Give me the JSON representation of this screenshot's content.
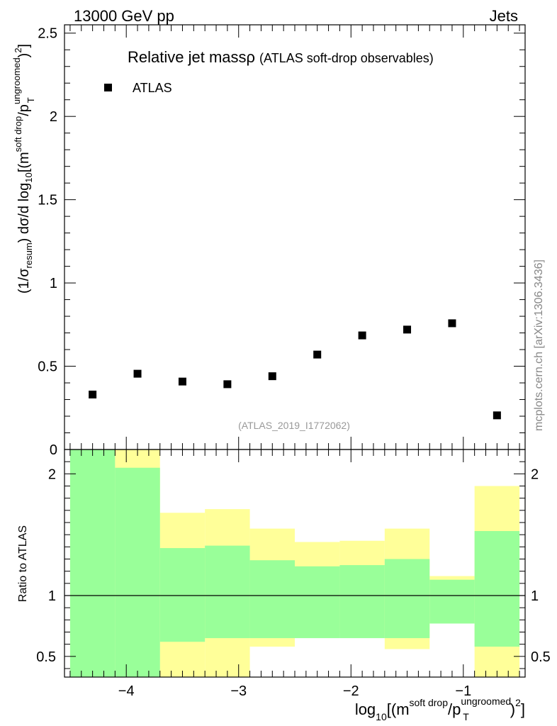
{
  "header": {
    "left": "13000 GeV pp",
    "right": "Jets"
  },
  "side_note": "mcplots.cern.ch [arXiv:1306.3436]",
  "analysis_id": "(ATLAS_2019_I1772062)",
  "chart_data": [
    {
      "type": "scatter",
      "title_main": "Relative jet mass",
      "title_symbol": "ρ",
      "title_sub": "(ATLAS soft-drop observables)",
      "ylabel": "(1/σ_resum) dσ/d log_10[(m^soft drop/p_T^ungroomed)^2]",
      "ylim": [
        0,
        2.55
      ],
      "yticks": [
        0,
        0.5,
        1,
        1.5,
        2,
        2.5
      ],
      "ytick_labels": [
        "0",
        "0.5",
        "1",
        "1.5",
        "2",
        "2.5"
      ],
      "xlim": [
        -4.55,
        -0.45
      ],
      "grid": false,
      "legend_position": "top-left",
      "series": [
        {
          "name": "ATLAS",
          "color": "#000000",
          "marker": "square",
          "x": [
            -4.3,
            -3.9,
            -3.5,
            -3.1,
            -2.7,
            -2.3,
            -1.9,
            -1.5,
            -1.1,
            -0.7
          ],
          "y": [
            0.33,
            0.455,
            0.408,
            0.392,
            0.44,
            0.57,
            0.685,
            0.72,
            0.758,
            0.205
          ]
        }
      ]
    },
    {
      "type": "area",
      "ylabel": "Ratio to ATLAS",
      "xlabel": "log_10[(m^soft drop/p_T^ungroomed)^2]",
      "xlim": [
        -4.55,
        -0.45
      ],
      "xticks": [
        -4,
        -3,
        -2,
        -1
      ],
      "xtick_labels": [
        "−4",
        "−3",
        "−2",
        "−1"
      ],
      "ylim": [
        0.33,
        2.2
      ],
      "yticks": [
        0.5,
        1,
        2
      ],
      "ytick_labels": [
        "0.5",
        "1",
        "2"
      ],
      "reference_line": 1,
      "bin_edges": [
        -4.5,
        -4.1,
        -3.7,
        -3.3,
        -2.9,
        -2.5,
        -2.1,
        -1.7,
        -1.3,
        -0.9,
        -0.5
      ],
      "bands": [
        {
          "kind": "stat",
          "color": "#99ff99",
          "low": [
            0.33,
            0.33,
            0.62,
            0.65,
            0.65,
            0.65,
            0.65,
            0.65,
            0.77,
            0.58
          ],
          "high": [
            2.2,
            2.05,
            1.39,
            1.41,
            1.29,
            1.24,
            1.25,
            1.3,
            1.13,
            1.53
          ]
        },
        {
          "kind": "total",
          "color": "#ffff99",
          "low": [
            0.33,
            0.33,
            0.33,
            0.33,
            0.58,
            0.69,
            0.68,
            0.56,
            0.8,
            0.33
          ],
          "high": [
            2.2,
            2.2,
            1.68,
            1.71,
            1.55,
            1.44,
            1.45,
            1.55,
            1.16,
            1.9
          ]
        }
      ]
    }
  ]
}
